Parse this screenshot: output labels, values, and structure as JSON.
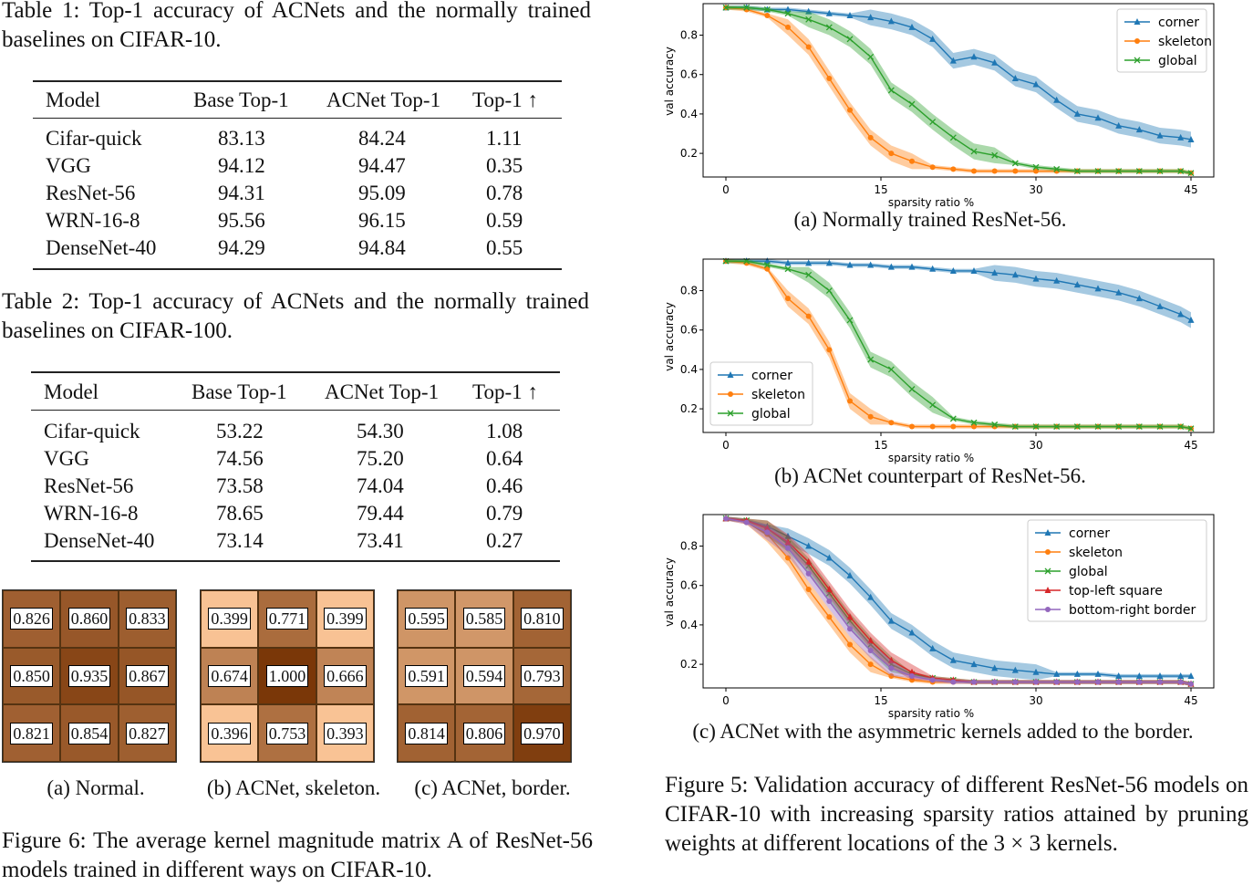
{
  "table1": {
    "caption": "Table 1:  Top-1 accuracy of ACNets and the normally trained baselines on CIFAR-10.",
    "headers": [
      "Model",
      "Base Top-1",
      "ACNet Top-1",
      "Top-1 ↑"
    ],
    "rows": [
      [
        "Cifar-quick",
        "83.13",
        "84.24",
        "1.11"
      ],
      [
        "VGG",
        "94.12",
        "94.47",
        "0.35"
      ],
      [
        "ResNet-56",
        "94.31",
        "95.09",
        "0.78"
      ],
      [
        "WRN-16-8",
        "95.56",
        "96.15",
        "0.59"
      ],
      [
        "DenseNet-40",
        "94.29",
        "94.84",
        "0.55"
      ]
    ]
  },
  "table2": {
    "caption": "Table 2:  Top-1 accuracy of ACNets and the normally trained baselines on CIFAR-100.",
    "headers": [
      "Model",
      "Base Top-1",
      "ACNet Top-1",
      "Top-1 ↑"
    ],
    "rows": [
      [
        "Cifar-quick",
        "53.22",
        "54.30",
        "1.08"
      ],
      [
        "VGG",
        "74.56",
        "75.20",
        "0.64"
      ],
      [
        "ResNet-56",
        "73.58",
        "74.04",
        "0.46"
      ],
      [
        "WRN-16-8",
        "78.65",
        "79.44",
        "0.79"
      ],
      [
        "DenseNet-40",
        "73.14",
        "73.41",
        "0.27"
      ]
    ]
  },
  "figure6": {
    "caption": "Figure 6:  The average kernel magnitude matrix A of ResNet-56 models trained in different ways on CIFAR-10.",
    "matrices": [
      {
        "label": "(a) Normal.",
        "values": [
          "0.826",
          "0.860",
          "0.833",
          "0.850",
          "0.935",
          "0.867",
          "0.821",
          "0.854",
          "0.827"
        ]
      },
      {
        "label": "(b) ACNet, skeleton.",
        "values": [
          "0.399",
          "0.771",
          "0.399",
          "0.674",
          "1.000",
          "0.666",
          "0.396",
          "0.753",
          "0.393"
        ]
      },
      {
        "label": "(c) ACNet, border.",
        "values": [
          "0.595",
          "0.585",
          "0.810",
          "0.591",
          "0.594",
          "0.793",
          "0.814",
          "0.806",
          "0.970"
        ]
      }
    ]
  },
  "figure5": {
    "caption": "Figure 5: Validation accuracy of different ResNet-56 models on CIFAR-10 with increasing sparsity ratios attained by pruning weights at different locations of the 3 × 3 kernels.",
    "colors": {
      "corner": "#1f77b4",
      "skeleton": "#ff7f0e",
      "global": "#2ca02c",
      "topleft": "#d62728",
      "bottomright": "#9467bd"
    }
  },
  "chart_data": [
    {
      "type": "line",
      "caption": "(a) Normally trained ResNet-56.",
      "xlabel": "sparsity ratio %",
      "ylabel": "val accuracy",
      "xlim": [
        0,
        45
      ],
      "ylim": [
        0.08,
        0.96
      ],
      "xticks": [
        "0",
        "15",
        "30",
        "45"
      ],
      "yticks": [
        "0.2",
        "0.4",
        "0.6",
        "0.8"
      ],
      "legend_position": "top-right",
      "x": [
        0,
        2,
        4,
        6,
        8,
        10,
        12,
        14,
        16,
        18,
        20,
        22,
        24,
        26,
        28,
        30,
        32,
        34,
        36,
        38,
        40,
        42,
        44,
        45
      ],
      "series": [
        {
          "name": "corner",
          "marker": "triangle",
          "values": [
            0.94,
            0.94,
            0.93,
            0.93,
            0.92,
            0.91,
            0.9,
            0.89,
            0.87,
            0.84,
            0.78,
            0.67,
            0.69,
            0.66,
            0.58,
            0.55,
            0.47,
            0.4,
            0.38,
            0.34,
            0.32,
            0.29,
            0.28,
            0.27
          ]
        },
        {
          "name": "skeleton",
          "marker": "circle",
          "values": [
            0.94,
            0.93,
            0.9,
            0.84,
            0.74,
            0.58,
            0.42,
            0.28,
            0.2,
            0.16,
            0.13,
            0.12,
            0.11,
            0.11,
            0.11,
            0.11,
            0.11,
            0.11,
            0.11,
            0.11,
            0.11,
            0.11,
            0.11,
            0.1
          ]
        },
        {
          "name": "global",
          "marker": "x",
          "values": [
            0.94,
            0.94,
            0.93,
            0.91,
            0.88,
            0.84,
            0.78,
            0.69,
            0.52,
            0.45,
            0.36,
            0.28,
            0.21,
            0.19,
            0.15,
            0.13,
            0.12,
            0.11,
            0.11,
            0.11,
            0.11,
            0.11,
            0.11,
            0.1
          ]
        }
      ]
    },
    {
      "type": "line",
      "caption": "(b) ACNet counterpart of ResNet-56.",
      "xlabel": "sparsity ratio %",
      "ylabel": "val accuracy",
      "xlim": [
        0,
        45
      ],
      "ylim": [
        0.08,
        0.96
      ],
      "xticks": [
        "0",
        "15",
        "30",
        "45"
      ],
      "yticks": [
        "0.2",
        "0.4",
        "0.6",
        "0.8"
      ],
      "legend_position": "bottom-left",
      "x": [
        0,
        2,
        4,
        6,
        8,
        10,
        12,
        14,
        16,
        18,
        20,
        22,
        24,
        26,
        28,
        30,
        32,
        34,
        36,
        38,
        40,
        42,
        44,
        45
      ],
      "series": [
        {
          "name": "corner",
          "marker": "triangle",
          "values": [
            0.95,
            0.95,
            0.95,
            0.94,
            0.94,
            0.94,
            0.93,
            0.93,
            0.92,
            0.92,
            0.91,
            0.9,
            0.9,
            0.89,
            0.88,
            0.86,
            0.85,
            0.83,
            0.81,
            0.79,
            0.76,
            0.72,
            0.68,
            0.65
          ]
        },
        {
          "name": "skeleton",
          "marker": "circle",
          "values": [
            0.95,
            0.94,
            0.91,
            0.76,
            0.67,
            0.5,
            0.24,
            0.16,
            0.13,
            0.11,
            0.11,
            0.11,
            0.11,
            0.11,
            0.11,
            0.11,
            0.11,
            0.11,
            0.11,
            0.11,
            0.11,
            0.11,
            0.11,
            0.1
          ]
        },
        {
          "name": "global",
          "marker": "x",
          "values": [
            0.95,
            0.95,
            0.93,
            0.91,
            0.88,
            0.8,
            0.65,
            0.45,
            0.4,
            0.3,
            0.22,
            0.15,
            0.13,
            0.12,
            0.11,
            0.11,
            0.11,
            0.11,
            0.11,
            0.11,
            0.11,
            0.11,
            0.11,
            0.1
          ]
        }
      ]
    },
    {
      "type": "line",
      "caption": "(c) ACNet with the asymmetric kernels added to the border.",
      "xlabel": "sparsity ratio %",
      "ylabel": "val accuracy",
      "xlim": [
        0,
        45
      ],
      "ylim": [
        0.08,
        0.96
      ],
      "xticks": [
        "0",
        "15",
        "30",
        "45"
      ],
      "yticks": [
        "0.2",
        "0.4",
        "0.6",
        "0.8"
      ],
      "legend_position": "top-right",
      "x": [
        0,
        2,
        4,
        6,
        8,
        10,
        12,
        14,
        16,
        18,
        20,
        22,
        24,
        26,
        28,
        30,
        32,
        34,
        36,
        38,
        40,
        42,
        44,
        45
      ],
      "series": [
        {
          "name": "corner",
          "marker": "triangle",
          "values": [
            0.94,
            0.93,
            0.9,
            0.85,
            0.8,
            0.74,
            0.65,
            0.54,
            0.42,
            0.36,
            0.28,
            0.22,
            0.2,
            0.18,
            0.17,
            0.16,
            0.15,
            0.15,
            0.15,
            0.14,
            0.14,
            0.14,
            0.14,
            0.14
          ]
        },
        {
          "name": "skeleton",
          "marker": "circle",
          "values": [
            0.94,
            0.92,
            0.86,
            0.74,
            0.58,
            0.44,
            0.3,
            0.2,
            0.14,
            0.12,
            0.11,
            0.11,
            0.11,
            0.11,
            0.11,
            0.11,
            0.11,
            0.11,
            0.11,
            0.11,
            0.11,
            0.11,
            0.11,
            0.1
          ]
        },
        {
          "name": "global",
          "marker": "x",
          "values": [
            0.94,
            0.93,
            0.89,
            0.81,
            0.7,
            0.56,
            0.42,
            0.3,
            0.2,
            0.15,
            0.13,
            0.12,
            0.11,
            0.11,
            0.11,
            0.11,
            0.11,
            0.11,
            0.11,
            0.11,
            0.11,
            0.11,
            0.11,
            0.1
          ]
        },
        {
          "name": "top-left square",
          "marker": "triangle",
          "values": [
            0.94,
            0.93,
            0.89,
            0.82,
            0.72,
            0.58,
            0.44,
            0.32,
            0.22,
            0.16,
            0.13,
            0.12,
            0.11,
            0.11,
            0.11,
            0.11,
            0.11,
            0.11,
            0.11,
            0.11,
            0.11,
            0.11,
            0.11,
            0.1
          ]
        },
        {
          "name": "bottom-right border",
          "marker": "circle",
          "values": [
            0.94,
            0.92,
            0.87,
            0.79,
            0.66,
            0.52,
            0.38,
            0.27,
            0.18,
            0.14,
            0.12,
            0.11,
            0.11,
            0.11,
            0.11,
            0.11,
            0.11,
            0.11,
            0.11,
            0.11,
            0.11,
            0.11,
            0.11,
            0.1
          ]
        }
      ]
    }
  ]
}
